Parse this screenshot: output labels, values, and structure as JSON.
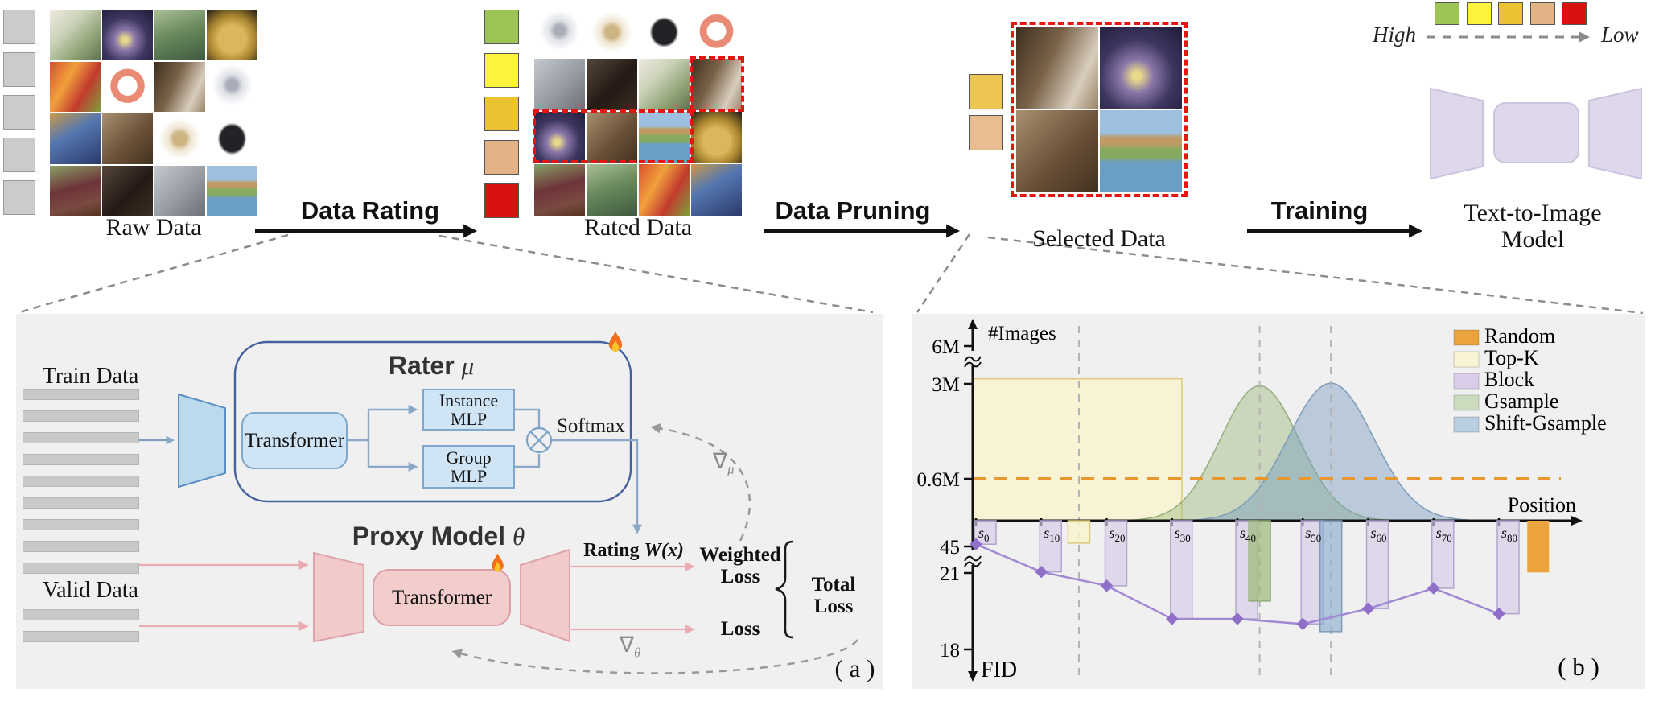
{
  "pipeline": {
    "raw_label": "Raw Data",
    "rating_label": "Data Rating",
    "rated_label": "Rated Data",
    "pruning_label": "Data Pruning",
    "selected_label": "Selected Data",
    "training_label": "Training",
    "t2i_line1": "Text-to-Image",
    "t2i_line2": "Model",
    "scale": {
      "high": "High",
      "low": "Low",
      "colors": [
        "#9dc455",
        "#fdf23c",
        "#ebc232",
        "#e3b388",
        "#d8130f"
      ]
    },
    "raw_gray_color": "#cbcbcb",
    "raw_gray_squares": 5,
    "selected_colors": [
      "#edc553",
      "#e9bd92"
    ],
    "raw_grid": [
      [
        "diffuser",
        "fireworks",
        "forest",
        "potatoes"
      ],
      [
        "fruit",
        "band",
        "bedroom",
        "ring"
      ],
      [
        "madonna",
        "couple",
        "pendant",
        "mask"
      ],
      [
        "football",
        "cabinet",
        "building",
        "houselake"
      ]
    ],
    "rated_products": [
      "ring",
      "pendant",
      "mask",
      "band"
    ],
    "rated_grid": [
      [
        "building",
        "cabinet",
        "diffuser",
        "bedroom"
      ],
      [
        "fireworks",
        "couple",
        "houselake",
        "potatoes"
      ],
      [
        "football",
        "forest",
        "fruit",
        "madonna"
      ]
    ],
    "selected_grid": [
      [
        "bedroom",
        "fireworks"
      ],
      [
        "couple",
        "houselake"
      ]
    ]
  },
  "panel_a": {
    "train_data": "Train Data",
    "valid_data": "Valid Data",
    "rater_title": "Rater",
    "rater_symbol": "μ",
    "transformer_label": "Transformer",
    "instance_line1": "Instance",
    "instance_line2": "MLP",
    "group_line1": "Group",
    "group_line2": "MLP",
    "softmax": "Softmax",
    "proxy_title": "Proxy Model",
    "proxy_symbol": "θ",
    "proxy_transformer": "Transformer",
    "rating_prefix": "Rating",
    "rating_math": "W(x)",
    "weighted_line1": "Weighted",
    "weighted_line2": "Loss",
    "loss": "Loss",
    "total_line1": "Total",
    "total_line2": "Loss",
    "grad_mu_sym": "∇",
    "grad_mu_sub": "μ",
    "grad_theta_sym": "∇",
    "grad_theta_sub": "θ",
    "caption": "( a )"
  },
  "chart_data": {
    "type": "composite (area + bar + line)",
    "caption": "( b )",
    "x_axis": {
      "label": "Position",
      "tick_labels": [
        "s0",
        "s10",
        "s20",
        "s30",
        "s40",
        "s50",
        "s60",
        "s70",
        "s80"
      ],
      "tick_positions": [
        0,
        10,
        20,
        30,
        40,
        50,
        60,
        70,
        80
      ]
    },
    "y_axis_top": {
      "label": "#Images",
      "unit": "M",
      "ticks": [
        {
          "label": "6M",
          "value": 6
        },
        {
          "label": "3M",
          "value": 3
        },
        {
          "label": "0.6M",
          "value": 0.6
        }
      ],
      "axis_break": true
    },
    "y_axis_bottom": {
      "label": "FID",
      "direction": "down",
      "ticks": [
        {
          "label": "45",
          "value": 45
        },
        {
          "label": "21",
          "value": 21
        },
        {
          "label": "18",
          "value": 18
        }
      ],
      "axis_break": true
    },
    "legend": [
      {
        "label": "Random",
        "color": "#eba43c"
      },
      {
        "label": "Top-K",
        "color": "#faf3d3"
      },
      {
        "label": "Block",
        "color": "#d9cdea"
      },
      {
        "label": "Gsample",
        "color": "#cadcbd"
      },
      {
        "label": "Shift-Gsample",
        "color": "#b9cfe2"
      }
    ],
    "series": {
      "random": {
        "label": "Random",
        "images_hline": 0.6,
        "bar_position": 86,
        "fid": 21.5,
        "color": "#eba43c"
      },
      "topk": {
        "label": "Top-K",
        "range_positions": [
          0,
          31.5
        ],
        "images": 3.4,
        "bar_position": 15.75,
        "fid": 48,
        "fill": "rgba(250,243,209,0.85)",
        "edge": "#dcc97a"
      },
      "block": {
        "label": "Block",
        "positions": [
          0,
          10,
          20,
          30,
          40,
          50,
          60,
          70,
          80
        ],
        "fid": [
          47,
          22,
          20.5,
          19.2,
          19.2,
          19.0,
          19.6,
          20.4,
          19.4
        ],
        "fill": "rgba(214,204,231,0.66)",
        "edge": "#b3a5cf"
      },
      "gsample": {
        "label": "Gsample",
        "center_position": 43.4,
        "sigma_positions": 6,
        "peak_images": 2.95,
        "fid": 19.9,
        "fill": "rgba(150,180,120,0.42)",
        "edge": "#93ad7c",
        "bar_fill": "rgba(154,185,120,0.7)"
      },
      "shift_gsample": {
        "label": "Shift-Gsample",
        "center_position": 54.3,
        "sigma_positions": 6.5,
        "peak_images": 3.05,
        "fid": 18.7,
        "fill": "rgba(120,155,190,0.45)",
        "edge": "#7e9cba",
        "bar_fill": "rgba(147,178,206,0.7)"
      }
    },
    "fid_line": {
      "series": "Block",
      "color": "#a189d4",
      "marker": "diamond",
      "positions": [
        0,
        10,
        20,
        30,
        40,
        50,
        60,
        70,
        80
      ],
      "values": [
        47,
        22,
        20.5,
        19.2,
        19.2,
        19.0,
        19.6,
        20.4,
        19.4
      ]
    },
    "dashed_guides_positions": [
      15.75,
      43.4,
      54.3
    ]
  }
}
